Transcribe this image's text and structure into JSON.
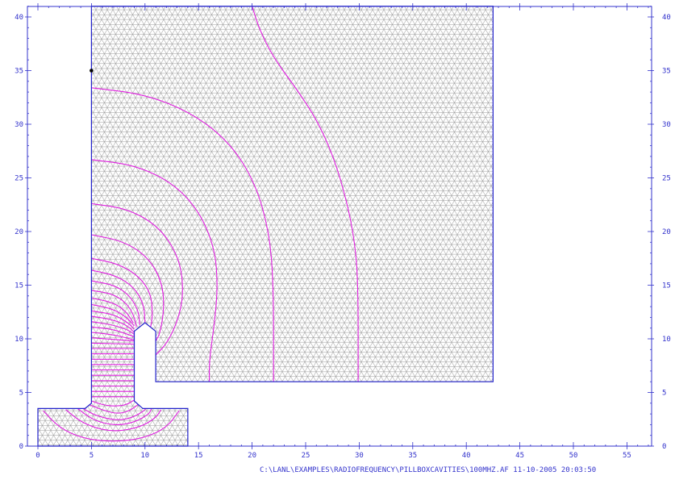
{
  "footer_text": "C:\\LANL\\EXAMPLES\\RADIOFREQUENCY\\PILLBOXCAVITIES\\100MHZ.AF 11-10-2005  20:03:50",
  "colors": {
    "axis": "#3333cc",
    "boundary": "#2222cc",
    "mesh": "#9a9a9a",
    "field_lines": "#e020e0",
    "marker": "#000000"
  },
  "axes": {
    "x_ticks": [
      "0",
      "5",
      "10",
      "15",
      "20",
      "25",
      "30",
      "35",
      "40",
      "45",
      "50",
      "55"
    ],
    "y_ticks": [
      "0",
      "5",
      "10",
      "15",
      "20",
      "25",
      "30",
      "35",
      "40"
    ],
    "xlim": [
      0,
      57
    ],
    "ylim": [
      0,
      41
    ]
  },
  "chart_data": {
    "type": "field-plot",
    "cavity_outline": [
      [
        5,
        41
      ],
      [
        5,
        4
      ],
      [
        4.4,
        3.5
      ],
      [
        0,
        3.5
      ],
      [
        0,
        0
      ],
      [
        14,
        0
      ],
      [
        14,
        3.5
      ],
      [
        9.8,
        3.5
      ],
      [
        9,
        4.2
      ],
      [
        9,
        10.7
      ],
      [
        10,
        11.5
      ],
      [
        11,
        10.7
      ],
      [
        11,
        6
      ],
      [
        42.5,
        6
      ],
      [
        42.5,
        41
      ]
    ],
    "marker_point": [
      5,
      35
    ],
    "field_lines": [
      [
        [
          20,
          41
        ],
        [
          20.7,
          38.8
        ],
        [
          22,
          36.2
        ],
        [
          24,
          33.5
        ],
        [
          26,
          30.5
        ],
        [
          27.6,
          27
        ],
        [
          28.8,
          23
        ],
        [
          29.6,
          19
        ],
        [
          29.9,
          15
        ],
        [
          29.9,
          6
        ]
      ],
      [
        [
          5,
          33.4
        ],
        [
          10,
          32.8
        ],
        [
          14.5,
          31
        ],
        [
          18,
          28.2
        ],
        [
          20.3,
          24.5
        ],
        [
          21.6,
          20
        ],
        [
          22,
          15
        ],
        [
          22,
          6
        ]
      ],
      [
        [
          5,
          26.7
        ],
        [
          9,
          26.2
        ],
        [
          12.5,
          24.6
        ],
        [
          15,
          22
        ],
        [
          16.5,
          18.5
        ],
        [
          16.8,
          15
        ],
        [
          16.5,
          11.5
        ],
        [
          16,
          8
        ],
        [
          16,
          6
        ]
      ],
      [
        [
          5,
          22.6
        ],
        [
          8.5,
          22.1
        ],
        [
          11.5,
          20.3
        ],
        [
          13.3,
          17.3
        ],
        [
          13.6,
          14
        ],
        [
          13,
          11.5
        ],
        [
          12,
          9.5
        ],
        [
          11,
          8.5
        ]
      ],
      [
        [
          5,
          19.7
        ],
        [
          8,
          19.1
        ],
        [
          10.3,
          17.6
        ],
        [
          11.6,
          15.3
        ],
        [
          11.8,
          12.8
        ],
        [
          11.4,
          10.5
        ],
        [
          11,
          9.8
        ]
      ],
      [
        [
          5,
          17.5
        ],
        [
          7.5,
          17
        ],
        [
          9.5,
          15.8
        ],
        [
          10.6,
          14.1
        ],
        [
          10.7,
          12
        ],
        [
          10.5,
          11
        ]
      ],
      [
        [
          5,
          16.4
        ],
        [
          7.3,
          15.9
        ],
        [
          9,
          14.8
        ],
        [
          9.9,
          13.2
        ],
        [
          10,
          11.5
        ]
      ],
      [
        [
          5,
          15.4
        ],
        [
          7.2,
          15
        ],
        [
          8.6,
          14
        ],
        [
          9.4,
          12.6
        ],
        [
          9.5,
          11.3
        ]
      ],
      [
        [
          5,
          14.5
        ],
        [
          7,
          14.2
        ],
        [
          8.3,
          13.3
        ],
        [
          9,
          12.1
        ],
        [
          9.2,
          11.1
        ]
      ],
      [
        [
          5,
          13.8
        ],
        [
          7,
          13.4
        ],
        [
          8.2,
          12.6
        ],
        [
          8.9,
          11.5
        ]
      ],
      [
        [
          5,
          13.2
        ],
        [
          7,
          12.8
        ],
        [
          8.3,
          12
        ],
        [
          9,
          11.2
        ]
      ],
      [
        [
          5,
          12.6
        ],
        [
          7,
          12.3
        ],
        [
          8.3,
          11.6
        ],
        [
          9,
          10.9
        ]
      ],
      [
        [
          5,
          12.1
        ],
        [
          7,
          11.8
        ],
        [
          8.4,
          11.2
        ],
        [
          9,
          10.6
        ]
      ],
      [
        [
          5,
          11.6
        ],
        [
          7,
          11.3
        ],
        [
          8.5,
          10.8
        ],
        [
          9,
          10.4
        ]
      ],
      [
        [
          5,
          11.1
        ],
        [
          7,
          10.9
        ],
        [
          9,
          10.2
        ]
      ],
      [
        [
          5,
          10.6
        ],
        [
          7,
          10.4
        ],
        [
          9,
          9.9
        ]
      ],
      [
        [
          5,
          10.1
        ],
        [
          9,
          9.8
        ]
      ],
      [
        [
          5,
          9.6
        ],
        [
          9,
          9.5
        ]
      ],
      [
        [
          5,
          9.1
        ],
        [
          9,
          9.1
        ]
      ],
      [
        [
          5,
          8.6
        ],
        [
          9,
          8.6
        ]
      ],
      [
        [
          5,
          8.1
        ],
        [
          9,
          8.1
        ]
      ],
      [
        [
          5,
          7.6
        ],
        [
          9,
          7.6
        ]
      ],
      [
        [
          5,
          7.1
        ],
        [
          9,
          7.1
        ]
      ],
      [
        [
          5,
          6.6
        ],
        [
          9,
          6.6
        ]
      ],
      [
        [
          5,
          6.1
        ],
        [
          9,
          6.1
        ]
      ],
      [
        [
          5,
          5.6
        ],
        [
          9,
          5.6
        ]
      ],
      [
        [
          5,
          5.1
        ],
        [
          9,
          5.1
        ]
      ],
      [
        [
          5,
          4.6
        ],
        [
          9,
          4.6
        ]
      ],
      [
        [
          0.5,
          3.3
        ],
        [
          2,
          1.7
        ],
        [
          4.2,
          0.7
        ],
        [
          7,
          0.4
        ],
        [
          9.8,
          0.7
        ],
        [
          12,
          1.7
        ],
        [
          13.2,
          3.3
        ]
      ],
      [
        [
          2.6,
          3.4
        ],
        [
          4.2,
          2.1
        ],
        [
          6.8,
          1.3
        ],
        [
          9.4,
          1.7
        ],
        [
          11,
          2.6
        ],
        [
          11.5,
          3.4
        ]
      ],
      [
        [
          3.7,
          3.5
        ],
        [
          5.2,
          2.4
        ],
        [
          7.2,
          1.9
        ],
        [
          9,
          2.2
        ],
        [
          10.4,
          3.0
        ],
        [
          10.6,
          3.5
        ]
      ],
      [
        [
          4.2,
          3.5
        ],
        [
          5.5,
          2.8
        ],
        [
          7.3,
          2.4
        ],
        [
          8.7,
          2.6
        ],
        [
          9.8,
          3.2
        ],
        [
          10.1,
          3.5
        ]
      ],
      [
        [
          4.7,
          3.9
        ],
        [
          6.2,
          3.3
        ],
        [
          7.5,
          3.0
        ],
        [
          8.6,
          3.3
        ],
        [
          9.4,
          3.9
        ]
      ],
      [
        [
          5,
          4.2
        ],
        [
          6.6,
          3.7
        ],
        [
          8.2,
          3.8
        ],
        [
          9,
          4.3
        ]
      ]
    ]
  }
}
